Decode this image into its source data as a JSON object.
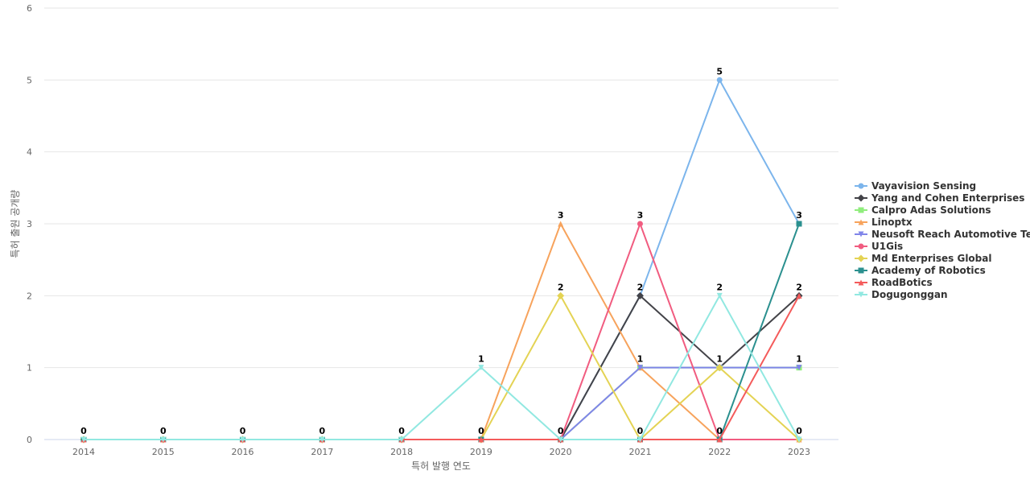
{
  "chart_data": {
    "type": "line",
    "xlabel": "특허 발행 연도",
    "ylabel": "특허 출원 공개량",
    "categories": [
      "2014",
      "2015",
      "2016",
      "2017",
      "2018",
      "2019",
      "2020",
      "2021",
      "2022",
      "2023"
    ],
    "y_ticks": [
      "0",
      "1",
      "2",
      "3",
      "4",
      "5",
      "6"
    ],
    "ylim": [
      0,
      6
    ],
    "grid": true,
    "legend_position": "right",
    "series": [
      {
        "name": "Vayavision Sensing",
        "color": "#7cb5ec",
        "marker": "circle",
        "values": [
          0,
          0,
          0,
          0,
          0,
          0,
          0,
          2,
          5,
          3
        ]
      },
      {
        "name": "Yang and Cohen Enterprises",
        "color": "#434348",
        "marker": "diamond",
        "values": [
          0,
          0,
          0,
          0,
          0,
          0,
          0,
          2,
          1,
          2
        ]
      },
      {
        "name": "Calpro Adas Solutions",
        "color": "#90ed7d",
        "marker": "square",
        "values": [
          0,
          0,
          0,
          0,
          0,
          0,
          0,
          1,
          1,
          1
        ]
      },
      {
        "name": "Linoptx",
        "color": "#f7a35c",
        "marker": "triangle",
        "values": [
          0,
          0,
          0,
          0,
          0,
          0,
          3,
          1,
          0,
          0
        ]
      },
      {
        "name": "Neusoft Reach Automotive Te...",
        "color": "#8085e9",
        "marker": "triangle-down",
        "values": [
          0,
          0,
          0,
          0,
          0,
          0,
          0,
          1,
          1,
          1
        ]
      },
      {
        "name": "U1Gis",
        "color": "#f15c80",
        "marker": "circle",
        "values": [
          0,
          0,
          0,
          0,
          0,
          0,
          0,
          3,
          0,
          0
        ]
      },
      {
        "name": "Md Enterprises Global",
        "color": "#e4d354",
        "marker": "diamond",
        "values": [
          0,
          0,
          0,
          0,
          0,
          0,
          2,
          0,
          1,
          0
        ]
      },
      {
        "name": "Academy of Robotics",
        "color": "#2b908f",
        "marker": "square",
        "values": [
          0,
          0,
          0,
          0,
          0,
          0,
          0,
          0,
          0,
          3
        ]
      },
      {
        "name": "RoadBotics",
        "color": "#f45b5b",
        "marker": "triangle",
        "values": [
          0,
          0,
          0,
          0,
          0,
          0,
          0,
          0,
          0,
          2
        ]
      },
      {
        "name": "Dogugonggan",
        "color": "#91e8e1",
        "marker": "triangle-down",
        "values": [
          0,
          0,
          0,
          0,
          0,
          1,
          0,
          0,
          2,
          0
        ]
      }
    ],
    "data_labels": [
      {
        "x": "2014",
        "text": "0",
        "y": 0
      },
      {
        "x": "2015",
        "text": "0",
        "y": 0
      },
      {
        "x": "2016",
        "text": "0",
        "y": 0
      },
      {
        "x": "2017",
        "text": "0",
        "y": 0
      },
      {
        "x": "2018",
        "text": "0",
        "y": 0
      },
      {
        "x": "2019",
        "text": "1",
        "y": 1
      },
      {
        "x": "2019",
        "text": "0",
        "y": 0
      },
      {
        "x": "2020",
        "text": "3",
        "y": 3
      },
      {
        "x": "2020",
        "text": "2",
        "y": 2
      },
      {
        "x": "2020",
        "text": "0",
        "y": 0
      },
      {
        "x": "2021",
        "text": "3",
        "y": 3
      },
      {
        "x": "2021",
        "text": "2",
        "y": 2
      },
      {
        "x": "2021",
        "text": "1",
        "y": 1
      },
      {
        "x": "2021",
        "text": "0",
        "y": 0
      },
      {
        "x": "2022",
        "text": "5",
        "y": 5
      },
      {
        "x": "2022",
        "text": "2",
        "y": 2
      },
      {
        "x": "2022",
        "text": "1",
        "y": 1
      },
      {
        "x": "2022",
        "text": "0",
        "y": 0
      },
      {
        "x": "2023",
        "text": "3",
        "y": 3
      },
      {
        "x": "2023",
        "text": "2",
        "y": 2
      },
      {
        "x": "2023",
        "text": "1",
        "y": 1
      },
      {
        "x": "2023",
        "text": "0",
        "y": 0
      }
    ]
  }
}
